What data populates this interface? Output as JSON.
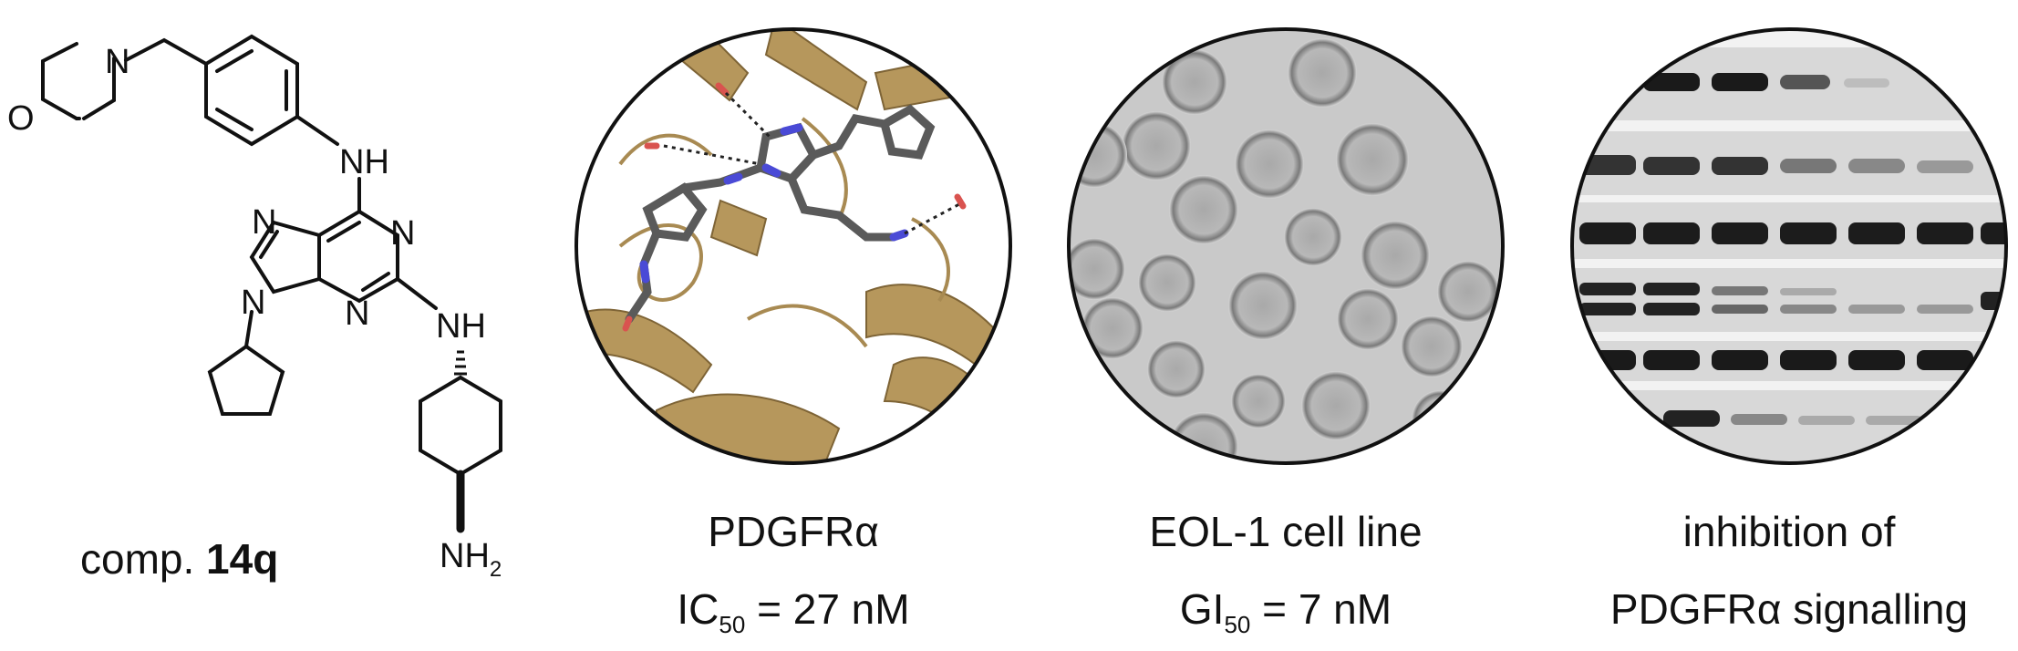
{
  "compound": {
    "label_prefix": "comp.",
    "label_id": "14q",
    "atoms": {
      "o": "O",
      "n_morph": "N",
      "nh_top": "NH",
      "n7": "N",
      "n1": "N",
      "n9": "N",
      "n3": "N",
      "nh_right": "NH",
      "nh2": "NH",
      "nh2_sub": "2"
    }
  },
  "panels": [
    {
      "line1": "PDGFRα",
      "line2_main": "IC",
      "line2_sub": "50",
      "line2_rest": " = 27 nM"
    },
    {
      "line1": "EOL-1 cell line",
      "line2_main": "GI",
      "line2_sub": "50",
      "line2_rest": " = 7 nM"
    },
    {
      "line1": "inhibition of",
      "line2_main": "PDGFRα signalling",
      "line2_sub": "",
      "line2_rest": ""
    }
  ],
  "colors": {
    "protein": "#b6975c",
    "ligand": "#5a5a5a",
    "nitrogen": "#4a4ad6",
    "oxygen": "#d9534f",
    "cells_bg": "#c9c9c9",
    "blot_bg": "#f2f2f2"
  }
}
